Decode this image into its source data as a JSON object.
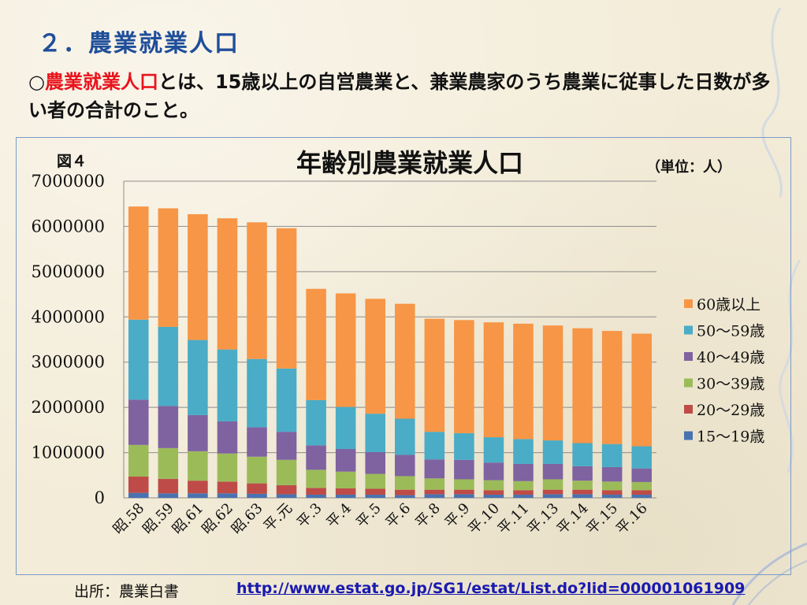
{
  "slide": {
    "title": "２．農業就業人口",
    "intro_bullet": "○",
    "intro_term": "農業就業人口",
    "intro_rest": "とは、15歳以上の自営農業と、兼業農家のうち農業に従事した日数が多い者の合計のこと。"
  },
  "figure_label": "図４",
  "unit_label": "（単位：人）",
  "source_label": "出所：農業白書",
  "source_url": "http://www.estat.go.jp/SG1/estat/List.do?lid=000001061909",
  "colors": {
    "15〜19歳": "#4a72b0",
    "20〜29歳": "#be4b48",
    "30〜39歳": "#9bbb59",
    "40〜49歳": "#7f62a0",
    "50〜59歳": "#4aacc6",
    "60歳以上": "#f79646"
  },
  "chart_data": {
    "type": "bar",
    "stacked": true,
    "title": "年齢別農業就業人口",
    "xlabel": "",
    "ylabel": "",
    "ylim": [
      0,
      7000000
    ],
    "yticks": [
      "0",
      "1000000",
      "2000000",
      "3000000",
      "4000000",
      "5000000",
      "6000000",
      "7000000"
    ],
    "grid": true,
    "legend_position": "right",
    "categories": [
      "昭.58",
      "昭.59",
      "昭.61",
      "昭.62",
      "昭.63",
      "平.元",
      "平.3",
      "平.4",
      "平.5",
      "平.6",
      "平.8",
      "平.9",
      "平.10",
      "平.11",
      "平.13",
      "平.14",
      "平.15",
      "平.16"
    ],
    "series": [
      {
        "name": "15〜19歳",
        "values": [
          110000,
          100000,
          100000,
          100000,
          90000,
          80000,
          70000,
          70000,
          70000,
          60000,
          80000,
          80000,
          70000,
          70000,
          80000,
          80000,
          70000,
          70000
        ]
      },
      {
        "name": "20〜29歳",
        "values": [
          360000,
          320000,
          280000,
          260000,
          230000,
          200000,
          150000,
          140000,
          130000,
          120000,
          100000,
          100000,
          100000,
          100000,
          100000,
          100000,
          100000,
          100000
        ]
      },
      {
        "name": "30〜39歳",
        "values": [
          700000,
          680000,
          650000,
          620000,
          590000,
          560000,
          400000,
          370000,
          330000,
          300000,
          250000,
          230000,
          220000,
          200000,
          230000,
          200000,
          190000,
          180000
        ]
      },
      {
        "name": "40〜49歳",
        "values": [
          1000000,
          930000,
          800000,
          710000,
          650000,
          620000,
          540000,
          500000,
          480000,
          470000,
          420000,
          430000,
          390000,
          380000,
          340000,
          320000,
          320000,
          300000
        ]
      },
      {
        "name": "50〜59歳",
        "values": [
          1770000,
          1750000,
          1660000,
          1590000,
          1510000,
          1400000,
          1000000,
          930000,
          850000,
          800000,
          610000,
          590000,
          560000,
          550000,
          520000,
          510000,
          510000,
          490000
        ]
      },
      {
        "name": "60歳以上",
        "values": [
          2500000,
          2620000,
          2780000,
          2900000,
          3020000,
          3100000,
          2460000,
          2510000,
          2540000,
          2540000,
          2500000,
          2500000,
          2540000,
          2550000,
          2540000,
          2540000,
          2500000,
          2490000
        ]
      }
    ]
  }
}
